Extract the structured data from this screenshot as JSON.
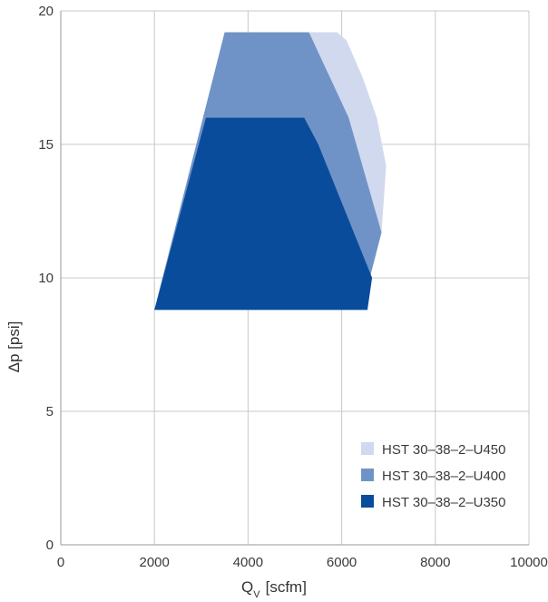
{
  "chart_data": {
    "type": "area",
    "xlabel_main": "Q",
    "xlabel_sub": "V",
    "xlabel_unit": "[scfm]",
    "ylabel": "Δp [psi]",
    "xlim": [
      0,
      10000
    ],
    "ylim": [
      0,
      20
    ],
    "xticks": [
      "0",
      "2000",
      "4000",
      "6000",
      "8000",
      "10000"
    ],
    "yticks": [
      "0",
      "5",
      "10",
      "15",
      "20"
    ],
    "grid": true,
    "legend_position": "bottom-right",
    "series": [
      {
        "name": "HST 30–38–2–U450",
        "color": "#d0d9ee",
        "polygon": [
          [
            3500,
            19.2
          ],
          [
            5900,
            19.2
          ],
          [
            6100,
            18.9
          ],
          [
            6450,
            17.5
          ],
          [
            6750,
            16.0
          ],
          [
            6950,
            14.2
          ],
          [
            6850,
            11.7
          ],
          [
            6600,
            10.0
          ],
          [
            6550,
            8.8
          ],
          [
            2000,
            8.8
          ]
        ]
      },
      {
        "name": "HST 30–38–2–U400",
        "color": "#7093c7",
        "polygon": [
          [
            3500,
            19.2
          ],
          [
            5300,
            19.2
          ],
          [
            6150,
            16.0
          ],
          [
            6850,
            11.7
          ],
          [
            6600,
            10.0
          ],
          [
            6550,
            8.8
          ],
          [
            2000,
            8.8
          ]
        ]
      },
      {
        "name": "HST 30–38–2–U350",
        "color": "#0a4c9c",
        "polygon": [
          [
            3100,
            16.0
          ],
          [
            5200,
            16.0
          ],
          [
            5500,
            15.0
          ],
          [
            6650,
            10.0
          ],
          [
            6550,
            8.8
          ],
          [
            2000,
            8.8
          ]
        ]
      }
    ]
  }
}
